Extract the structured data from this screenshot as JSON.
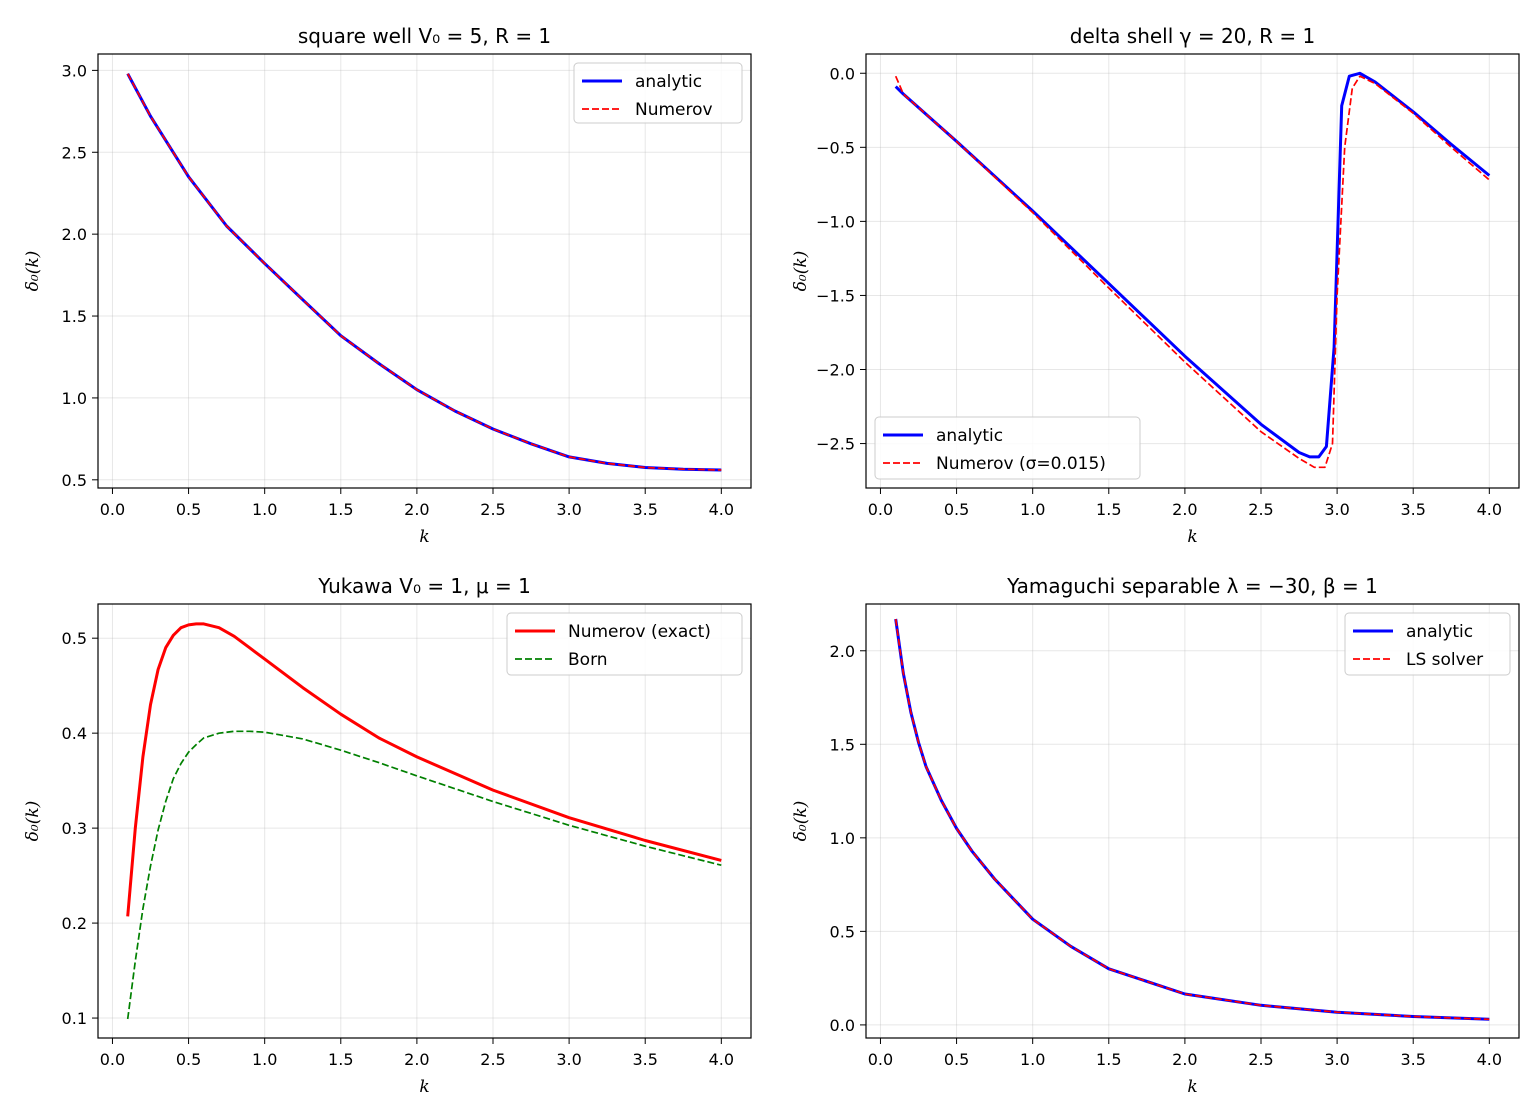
{
  "chart_data": [
    {
      "type": "line",
      "title": "square well  V₀ = 5,  R = 1",
      "xlabel": "k",
      "ylabel": "δ₀(k)",
      "xlim": [
        -0.095,
        4.195
      ],
      "ylim": [
        0.45,
        3.1
      ],
      "xticks": [
        0.0,
        0.5,
        1.0,
        1.5,
        2.0,
        2.5,
        3.0,
        3.5,
        4.0
      ],
      "xtick_labels": [
        "0.0",
        "0.5",
        "1.0",
        "1.5",
        "2.0",
        "2.5",
        "3.0",
        "3.5",
        "4.0"
      ],
      "yticks": [
        0.5,
        1.0,
        1.5,
        2.0,
        2.5,
        3.0
      ],
      "ytick_labels": [
        "0.5",
        "1.0",
        "1.5",
        "2.0",
        "2.5",
        "3.0"
      ],
      "grid": true,
      "legend": "top-right",
      "x": [
        0.1,
        0.25,
        0.5,
        0.75,
        1.0,
        1.25,
        1.5,
        1.75,
        2.0,
        2.25,
        2.5,
        2.75,
        3.0,
        3.25,
        3.5,
        3.75,
        4.0
      ],
      "series": [
        {
          "name": "analytic",
          "color": "#0000ff",
          "style": "solid",
          "values": [
            2.98,
            2.72,
            2.35,
            2.05,
            1.82,
            1.6,
            1.38,
            1.21,
            1.05,
            0.92,
            0.81,
            0.72,
            0.64,
            0.6,
            0.575,
            0.565,
            0.56
          ]
        },
        {
          "name": "Numerov",
          "color": "#ff0000",
          "style": "dashed",
          "values": [
            2.98,
            2.72,
            2.35,
            2.05,
            1.82,
            1.6,
            1.38,
            1.21,
            1.05,
            0.92,
            0.81,
            0.72,
            0.64,
            0.6,
            0.575,
            0.565,
            0.56
          ]
        }
      ]
    },
    {
      "type": "line",
      "title": "delta shell  γ = 20,  R = 1",
      "xlabel": "k",
      "ylabel": "δ₀(k)",
      "xlim": [
        -0.095,
        4.195
      ],
      "ylim": [
        -2.8,
        0.13
      ],
      "xticks": [
        0.0,
        0.5,
        1.0,
        1.5,
        2.0,
        2.5,
        3.0,
        3.5,
        4.0
      ],
      "xtick_labels": [
        "0.0",
        "0.5",
        "1.0",
        "1.5",
        "2.0",
        "2.5",
        "3.0",
        "3.5",
        "4.0"
      ],
      "yticks": [
        0.0,
        -0.5,
        -1.0,
        -1.5,
        -2.0,
        -2.5
      ],
      "ytick_labels": [
        "0.0",
        "−0.5",
        "−1.0",
        "−1.5",
        "−2.0",
        "−2.5"
      ],
      "grid": true,
      "legend": "bottom-left",
      "series": [
        {
          "name": "analytic",
          "color": "#0000ff",
          "style": "solid",
          "x": [
            0.1,
            0.15,
            0.5,
            1.0,
            1.5,
            2.0,
            2.5,
            2.75,
            2.82,
            2.88,
            2.93,
            2.98,
            3.03,
            3.08,
            3.15,
            3.25,
            3.5,
            3.75,
            4.0
          ],
          "values": [
            -0.09,
            -0.14,
            -0.46,
            -0.93,
            -1.42,
            -1.91,
            -2.37,
            -2.56,
            -2.59,
            -2.59,
            -2.52,
            -1.85,
            -0.22,
            -0.02,
            0.0,
            -0.06,
            -0.26,
            -0.48,
            -0.69
          ]
        },
        {
          "name": "Numerov (σ=0.015)",
          "color": "#ff0000",
          "style": "dashed",
          "x": [
            0.1,
            0.13,
            0.15,
            0.5,
            1.0,
            1.5,
            2.0,
            2.5,
            2.75,
            2.85,
            2.92,
            2.97,
            3.0,
            3.05,
            3.1,
            3.15,
            3.25,
            3.5,
            3.75,
            4.0
          ],
          "values": [
            -0.02,
            -0.09,
            -0.14,
            -0.46,
            -0.94,
            -1.45,
            -1.95,
            -2.42,
            -2.6,
            -2.66,
            -2.66,
            -2.5,
            -1.5,
            -0.5,
            -0.1,
            -0.02,
            -0.07,
            -0.27,
            -0.5,
            -0.72
          ]
        }
      ]
    },
    {
      "type": "line",
      "title": "Yukawa  V₀ = 1,  μ = 1",
      "xlabel": "k",
      "ylabel": "δ₀(k)",
      "xlim": [
        -0.095,
        4.195
      ],
      "ylim": [
        0.079,
        0.536
      ],
      "xticks": [
        0.0,
        0.5,
        1.0,
        1.5,
        2.0,
        2.5,
        3.0,
        3.5,
        4.0
      ],
      "xtick_labels": [
        "0.0",
        "0.5",
        "1.0",
        "1.5",
        "2.0",
        "2.5",
        "3.0",
        "3.5",
        "4.0"
      ],
      "yticks": [
        0.1,
        0.2,
        0.3,
        0.4,
        0.5
      ],
      "ytick_labels": [
        "0.1",
        "0.2",
        "0.3",
        "0.4",
        "0.5"
      ],
      "grid": true,
      "legend": "top-right",
      "x": [
        0.1,
        0.15,
        0.2,
        0.25,
        0.3,
        0.35,
        0.4,
        0.45,
        0.5,
        0.55,
        0.6,
        0.7,
        0.8,
        0.9,
        1.0,
        1.25,
        1.5,
        1.75,
        2.0,
        2.5,
        3.0,
        3.5,
        4.0
      ],
      "series": [
        {
          "name": "Numerov (exact)",
          "color": "#ff0000",
          "style": "solid",
          "values": [
            0.207,
            0.3,
            0.375,
            0.43,
            0.467,
            0.49,
            0.503,
            0.511,
            0.514,
            0.515,
            0.515,
            0.511,
            0.502,
            0.49,
            0.478,
            0.448,
            0.42,
            0.395,
            0.375,
            0.34,
            0.311,
            0.287,
            0.266
          ]
        },
        {
          "name": "Born",
          "color": "#008000",
          "style": "dashed",
          "values": [
            0.099,
            0.16,
            0.215,
            0.26,
            0.298,
            0.328,
            0.352,
            0.368,
            0.38,
            0.388,
            0.395,
            0.4,
            0.402,
            0.402,
            0.401,
            0.394,
            0.382,
            0.369,
            0.355,
            0.328,
            0.303,
            0.281,
            0.261
          ]
        }
      ]
    },
    {
      "type": "line",
      "title": "Yamaguchi separable  λ = −30,  β = 1",
      "xlabel": "k",
      "ylabel": "δ₀(k)",
      "xlim": [
        -0.095,
        4.195
      ],
      "ylim": [
        -0.07,
        2.25
      ],
      "xticks": [
        0.0,
        0.5,
        1.0,
        1.5,
        2.0,
        2.5,
        3.0,
        3.5,
        4.0
      ],
      "xtick_labels": [
        "0.0",
        "0.5",
        "1.0",
        "1.5",
        "2.0",
        "2.5",
        "3.0",
        "3.5",
        "4.0"
      ],
      "yticks": [
        0.0,
        0.5,
        1.0,
        1.5,
        2.0
      ],
      "ytick_labels": [
        "0.0",
        "0.5",
        "1.0",
        "1.5",
        "2.0"
      ],
      "grid": true,
      "legend": "top-right",
      "x": [
        0.1,
        0.15,
        0.2,
        0.25,
        0.3,
        0.4,
        0.5,
        0.6,
        0.75,
        1.0,
        1.25,
        1.5,
        2.0,
        2.5,
        3.0,
        3.5,
        4.0
      ],
      "series": [
        {
          "name": "analytic",
          "color": "#0000ff",
          "style": "solid",
          "values": [
            2.17,
            1.88,
            1.67,
            1.51,
            1.38,
            1.2,
            1.05,
            0.93,
            0.78,
            0.565,
            0.42,
            0.3,
            0.165,
            0.105,
            0.068,
            0.045,
            0.03
          ]
        },
        {
          "name": "LS solver",
          "color": "#ff0000",
          "style": "dashed",
          "values": [
            2.17,
            1.88,
            1.67,
            1.51,
            1.38,
            1.2,
            1.05,
            0.93,
            0.78,
            0.565,
            0.42,
            0.3,
            0.165,
            0.105,
            0.068,
            0.045,
            0.03
          ]
        }
      ]
    }
  ]
}
